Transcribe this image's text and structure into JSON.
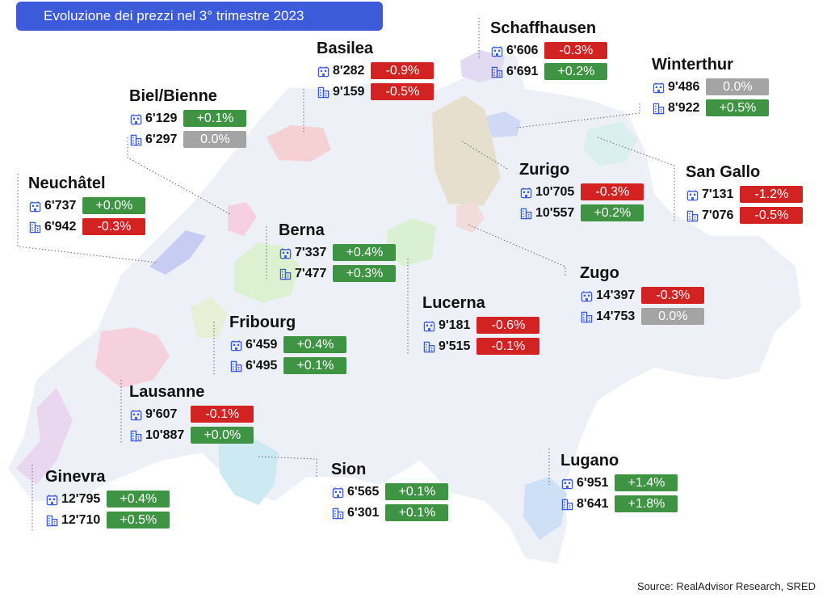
{
  "title": "Evoluzione dei prezzi nel 3° trimestre 2023",
  "source": "Source: RealAdvisor Research, SRED",
  "icons": {
    "apartment": "apartment-icon",
    "house": "house-icon"
  },
  "colors": {
    "increase": "#3e9443",
    "decrease": "#d32222",
    "unchanged": "#a4a4a4",
    "icon": "#3b5bdb",
    "title_bg": "#3b5bdb"
  },
  "cities": [
    {
      "id": "basilea",
      "name": "Basilea",
      "apartment": {
        "price": "8'282",
        "change": "-0.9%",
        "trend": "down"
      },
      "house": {
        "price": "9'159",
        "change": "-0.5%",
        "trend": "down"
      }
    },
    {
      "id": "schaffhausen",
      "name": "Schaffhausen",
      "apartment": {
        "price": "6'606",
        "change": "-0.3%",
        "trend": "down"
      },
      "house": {
        "price": "6'691",
        "change": "+0.2%",
        "trend": "up"
      }
    },
    {
      "id": "winterthur",
      "name": "Winterthur",
      "apartment": {
        "price": "9'486",
        "change": "0.0%",
        "trend": "flat"
      },
      "house": {
        "price": "8'922",
        "change": "+0.5%",
        "trend": "up"
      }
    },
    {
      "id": "biel",
      "name": "Biel/Bienne",
      "apartment": {
        "price": "6'129",
        "change": "+0.1%",
        "trend": "up"
      },
      "house": {
        "price": "6'297",
        "change": "0.0%",
        "trend": "flat"
      }
    },
    {
      "id": "zurigo",
      "name": "Zurigo",
      "apartment": {
        "price": "10'705",
        "change": "-0.3%",
        "trend": "down"
      },
      "house": {
        "price": "10'557",
        "change": "+0.2%",
        "trend": "up"
      }
    },
    {
      "id": "sangallo",
      "name": "San Gallo",
      "apartment": {
        "price": "7'131",
        "change": "-1.2%",
        "trend": "down"
      },
      "house": {
        "price": "7'076",
        "change": "-0.5%",
        "trend": "down"
      }
    },
    {
      "id": "neuchatel",
      "name": "Neuchâtel",
      "apartment": {
        "price": "6'737",
        "change": "+0.0%",
        "trend": "up"
      },
      "house": {
        "price": "6'942",
        "change": "-0.3%",
        "trend": "down"
      }
    },
    {
      "id": "berna",
      "name": "Berna",
      "apartment": {
        "price": "7'337",
        "change": "+0.4%",
        "trend": "up"
      },
      "house": {
        "price": "7'477",
        "change": "+0.3%",
        "trend": "up"
      }
    },
    {
      "id": "zugo",
      "name": "Zugo",
      "apartment": {
        "price": "14'397",
        "change": "-0.3%",
        "trend": "down"
      },
      "house": {
        "price": "14'753",
        "change": "0.0%",
        "trend": "flat"
      }
    },
    {
      "id": "lucerna",
      "name": "Lucerna",
      "apartment": {
        "price": "9'181",
        "change": "-0.6%",
        "trend": "down"
      },
      "house": {
        "price": "9'515",
        "change": "-0.1%",
        "trend": "down"
      }
    },
    {
      "id": "fribourg",
      "name": "Fribourg",
      "apartment": {
        "price": "6'459",
        "change": "+0.4%",
        "trend": "up"
      },
      "house": {
        "price": "6'495",
        "change": "+0.1%",
        "trend": "up"
      }
    },
    {
      "id": "lausanne",
      "name": "Lausanne",
      "apartment": {
        "price": "9'607",
        "change": "-0.1%",
        "trend": "down"
      },
      "house": {
        "price": "10'887",
        "change": "+0.0%",
        "trend": "up"
      }
    },
    {
      "id": "ginevra",
      "name": "Ginevra",
      "apartment": {
        "price": "12'795",
        "change": "+0.4%",
        "trend": "up"
      },
      "house": {
        "price": "12'710",
        "change": "+0.5%",
        "trend": "up"
      }
    },
    {
      "id": "sion",
      "name": "Sion",
      "apartment": {
        "price": "6'565",
        "change": "+0.1%",
        "trend": "up"
      },
      "house": {
        "price": "6'301",
        "change": "+0.1%",
        "trend": "up"
      }
    },
    {
      "id": "lugano",
      "name": "Lugano",
      "apartment": {
        "price": "6'951",
        "change": "+1.4%",
        "trend": "up"
      },
      "house": {
        "price": "8'641",
        "change": "+1.8%",
        "trend": "up"
      }
    }
  ]
}
